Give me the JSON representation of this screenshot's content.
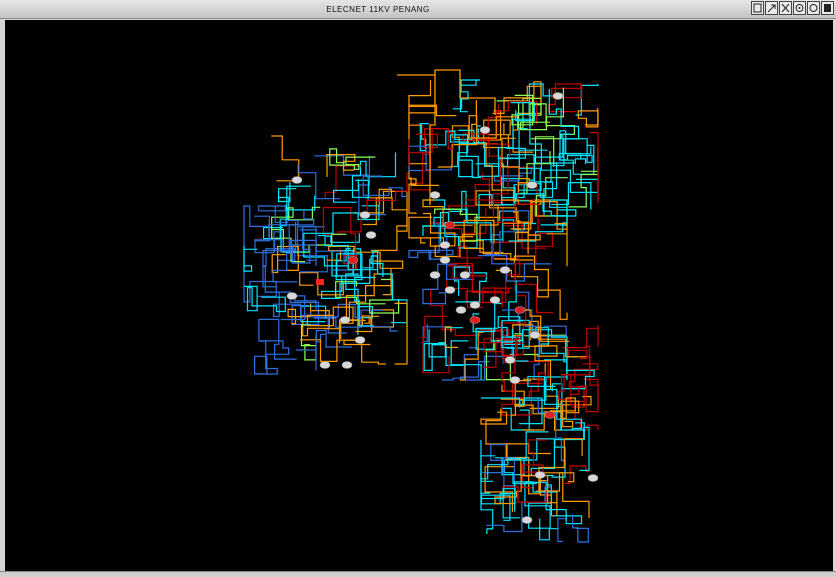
{
  "window": {
    "title": "ELECNET 11KV PENANG",
    "controls": [
      {
        "name": "restore-icon",
        "icon": "square-outline"
      },
      {
        "name": "pan-icon",
        "icon": "diagonal-arrow"
      },
      {
        "name": "zoom-extent-icon",
        "icon": "crosshair-arrows"
      },
      {
        "name": "zoom-in-icon",
        "icon": "circle-dot"
      },
      {
        "name": "zoom-out-icon",
        "icon": "circle-ring"
      },
      {
        "name": "close-icon",
        "icon": "filled-square"
      }
    ]
  },
  "map": {
    "background": "#000000",
    "feeder_colors": [
      "#00e5ff",
      "#ff9c00",
      "#c00000",
      "#2f6fe0",
      "#8cff5a",
      "#e8e8e8"
    ]
  }
}
